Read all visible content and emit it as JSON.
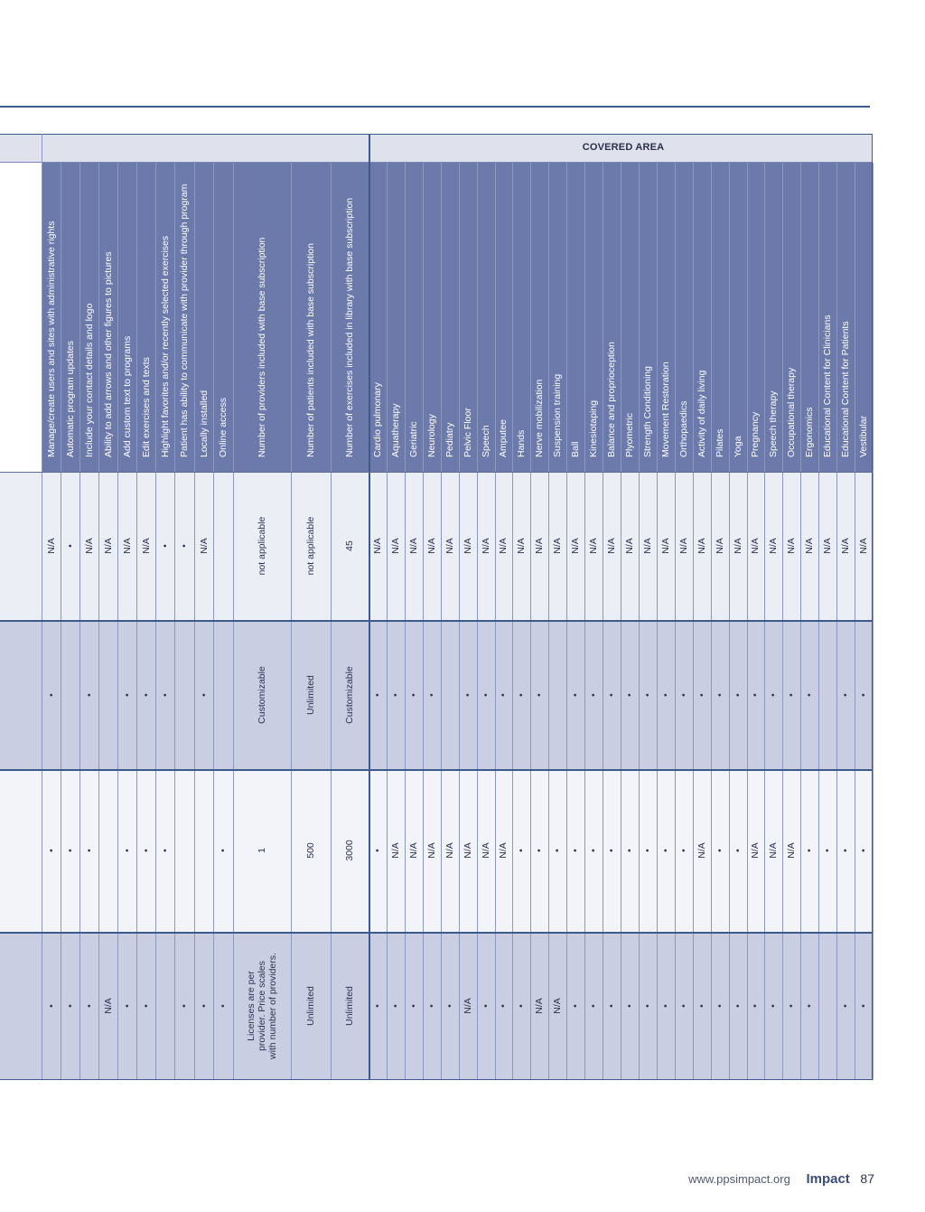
{
  "header": {
    "covered_area": "COVERED AREA"
  },
  "features": [
    "Manage/create users and sites with administrative rights",
    "Automatic program updates",
    "Include your contact details and logo",
    "Ability to add arrows and other figures to pictures",
    "Add custom text to programs",
    "Edit exercises and texts",
    "Highlight favorites and/or recently selected exercises",
    "Patient has ability to communicate with provider through program",
    "Locally installed",
    "Online access",
    "Number of providers included with base subscription",
    "Number of patients included with base subscription",
    "Number of exercises included in library with base subscription"
  ],
  "areas": [
    "Cardio pulmonary",
    "Aquatherapy",
    "Geriatric",
    "Neurology",
    "Pediatry",
    "Pelvic Floor",
    "Speech",
    "Amputee",
    "Hands",
    "Nerve mobilization",
    "Suspension training",
    "Ball",
    "Kinesiotaping",
    "Balance and proprioception",
    "Plyometric",
    "Strength Conditioning",
    "Movement Restoration",
    "Orthopaedics",
    "Activity of daily living",
    "Pilates",
    "Yoga",
    "Pregnancy",
    "Speech therapy",
    "Occupational therapy",
    "Ergonomics",
    "Educational Content for Clinicians",
    "Educational Content for Patients",
    "Vestibular"
  ],
  "products": [
    {
      "feature_values": [
        "N/A",
        "•",
        "N/A",
        "N/A",
        "N/A",
        "N/A",
        "•",
        "•",
        "N/A",
        "",
        "not applicable",
        "not applicable",
        "45"
      ],
      "area_values": [
        "N/A",
        "N/A",
        "N/A",
        "N/A",
        "N/A",
        "N/A",
        "N/A",
        "N/A",
        "N/A",
        "N/A",
        "N/A",
        "N/A",
        "N/A",
        "N/A",
        "N/A",
        "N/A",
        "N/A",
        "N/A",
        "N/A",
        "N/A",
        "N/A",
        "N/A",
        "N/A",
        "N/A",
        "N/A",
        "N/A",
        "N/A",
        "N/A"
      ]
    },
    {
      "feature_values": [
        "•",
        "",
        "•",
        "",
        "•",
        "•",
        "•",
        "",
        "•",
        "",
        "Customizable",
        "Unlimited",
        "Customizable"
      ],
      "area_values": [
        "•",
        "•",
        "•",
        "•",
        "",
        "•",
        "•",
        "•",
        "•",
        "•",
        "",
        "•",
        "•",
        "•",
        "•",
        "•",
        "•",
        "•",
        "•",
        "•",
        "•",
        "•",
        "•",
        "•",
        "•",
        "",
        "•",
        "•"
      ]
    },
    {
      "feature_values": [
        "•",
        "•",
        "•",
        "",
        "•",
        "•",
        "•",
        "",
        "",
        "•",
        "1",
        "500",
        "3000"
      ],
      "area_values": [
        "•",
        "N/A",
        "N/A",
        "N/A",
        "N/A",
        "N/A",
        "N/A",
        "N/A",
        "•",
        "•",
        "•",
        "•",
        "•",
        "•",
        "•",
        "•",
        "•",
        "•",
        "N/A",
        "•",
        "•",
        "N/A",
        "N/A",
        "N/A",
        "•",
        "•",
        "•",
        "•"
      ]
    },
    {
      "feature_values": [
        "•",
        "•",
        "•",
        "N/A",
        "•",
        "•",
        "",
        "•",
        "•",
        "•",
        "Licenses are per provider. Price scales with number of providers.",
        "Unlimited",
        "Unlimited"
      ],
      "area_values": [
        "•",
        "•",
        "•",
        "•",
        "•",
        "N/A",
        "•",
        "•",
        "•",
        "N/A",
        "N/A",
        "•",
        "•",
        "•",
        "•",
        "•",
        "•",
        "•",
        "•",
        "•",
        "•",
        "•",
        "•",
        "•",
        "•",
        "",
        "•",
        "•"
      ]
    }
  ],
  "footer": {
    "url": "www.ppsimpact.org",
    "brand": "Impact",
    "page": "87"
  }
}
